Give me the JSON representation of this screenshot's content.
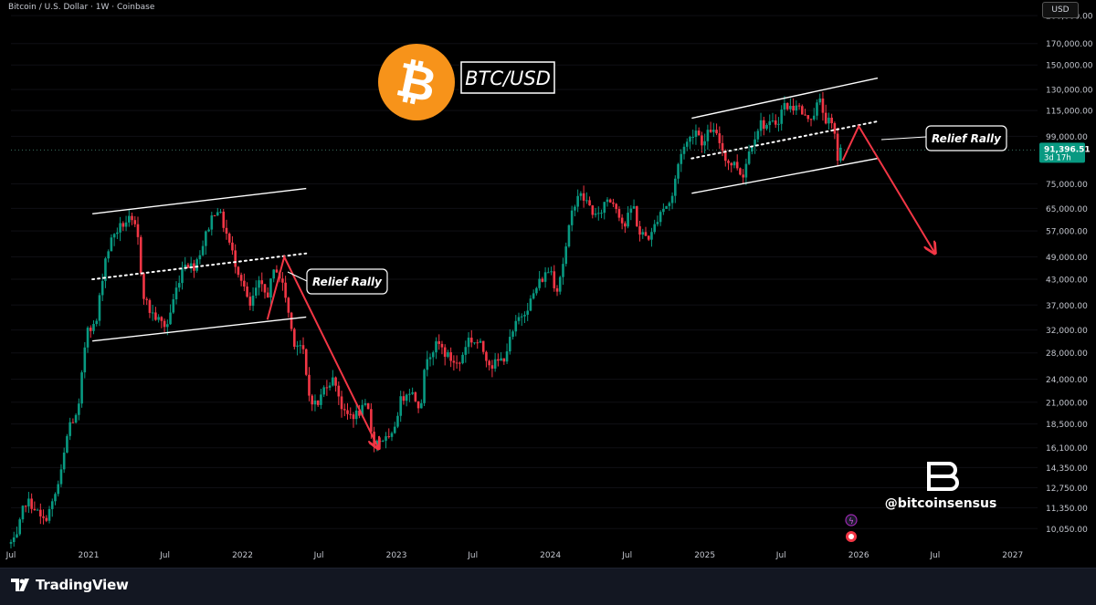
{
  "header": {
    "title": "Bitcoin / U.S. Dollar · 1W · Coinbase",
    "currency": "USD"
  },
  "chart_data": {
    "type": "candlestick",
    "title": "BTC/USD",
    "y_scale": "log",
    "ylim": [
      9000,
      210000
    ],
    "x_start": "2020-07-01",
    "x_end": "2027-03-01",
    "y_ticks": [
      {
        "v": 200000,
        "label": "200,000.00"
      },
      {
        "v": 170000,
        "label": "170,000.00"
      },
      {
        "v": 150000,
        "label": "150,000.00"
      },
      {
        "v": 130000,
        "label": "130,000.00"
      },
      {
        "v": 115000,
        "label": "115,000.00"
      },
      {
        "v": 99000,
        "label": "99,000.00"
      },
      {
        "v": 75000,
        "label": "75,000.00"
      },
      {
        "v": 65000,
        "label": "65,000.00"
      },
      {
        "v": 57000,
        "label": "57,000.00"
      },
      {
        "v": 49000,
        "label": "49,000.00"
      },
      {
        "v": 43000,
        "label": "43,000.00"
      },
      {
        "v": 37000,
        "label": "37,000.00"
      },
      {
        "v": 32000,
        "label": "32,000.00"
      },
      {
        "v": 28000,
        "label": "28,000.00"
      },
      {
        "v": 24000,
        "label": "24,000.00"
      },
      {
        "v": 21000,
        "label": "21,000.00"
      },
      {
        "v": 18500,
        "label": "18,500.00"
      },
      {
        "v": 16100,
        "label": "16,100.00"
      },
      {
        "v": 14350,
        "label": "14,350.00"
      },
      {
        "v": 12750,
        "label": "12,750.00"
      },
      {
        "v": 11350,
        "label": "11,350.00"
      },
      {
        "v": 10050,
        "label": "10,050.00"
      }
    ],
    "x_ticks": [
      {
        "t": "2020-07-01",
        "label": "Jul"
      },
      {
        "t": "2021-01-01",
        "label": "2021"
      },
      {
        "t": "2021-07-01",
        "label": "Jul"
      },
      {
        "t": "2022-01-01",
        "label": "2022"
      },
      {
        "t": "2022-07-01",
        "label": "Jul"
      },
      {
        "t": "2023-01-01",
        "label": "2023"
      },
      {
        "t": "2023-07-01",
        "label": "Jul"
      },
      {
        "t": "2024-01-01",
        "label": "2024"
      },
      {
        "t": "2024-07-01",
        "label": "Jul"
      },
      {
        "t": "2025-01-01",
        "label": "2025"
      },
      {
        "t": "2025-07-01",
        "label": "Jul"
      },
      {
        "t": "2026-01-01",
        "label": "2026"
      },
      {
        "t": "2026-07-01",
        "label": "Jul"
      },
      {
        "t": "2027-01-01",
        "label": "2027"
      }
    ],
    "price_path": [
      [
        "2020-07-01",
        9200
      ],
      [
        "2020-07-20",
        9300
      ],
      [
        "2020-08-10",
        11800
      ],
      [
        "2020-08-31",
        11500
      ],
      [
        "2020-09-21",
        10400
      ],
      [
        "2020-10-12",
        11400
      ],
      [
        "2020-11-02",
        13500
      ],
      [
        "2020-11-23",
        18500
      ],
      [
        "2020-12-14",
        19400
      ],
      [
        "2021-01-04",
        33000
      ],
      [
        "2021-01-25",
        32500
      ],
      [
        "2021-02-15",
        48000
      ],
      [
        "2021-03-08",
        56000
      ],
      [
        "2021-03-29",
        59000
      ],
      [
        "2021-04-12",
        61000
      ],
      [
        "2021-05-03",
        57000
      ],
      [
        "2021-05-17",
        40000
      ],
      [
        "2021-05-31",
        36000
      ],
      [
        "2021-06-21",
        34000
      ],
      [
        "2021-07-12",
        32500
      ],
      [
        "2021-08-02",
        40000
      ],
      [
        "2021-08-23",
        48000
      ],
      [
        "2021-09-13",
        46000
      ],
      [
        "2021-10-04",
        52000
      ],
      [
        "2021-10-25",
        61000
      ],
      [
        "2021-11-08",
        66000
      ],
      [
        "2021-11-29",
        57000
      ],
      [
        "2021-12-20",
        48000
      ],
      [
        "2022-01-10",
        42000
      ],
      [
        "2022-01-24",
        36000
      ],
      [
        "2022-02-14",
        42000
      ],
      [
        "2022-03-07",
        39000
      ],
      [
        "2022-03-28",
        46500
      ],
      [
        "2022-04-18",
        40000
      ],
      [
        "2022-05-09",
        30000
      ],
      [
        "2022-05-30",
        29000
      ],
      [
        "2022-06-13",
        22000
      ],
      [
        "2022-07-04",
        20500
      ],
      [
        "2022-07-25",
        23500
      ],
      [
        "2022-08-15",
        24000
      ],
      [
        "2022-09-05",
        19500
      ],
      [
        "2022-10-03",
        19500
      ],
      [
        "2022-10-31",
        20500
      ],
      [
        "2022-11-14",
        16500
      ],
      [
        "2022-12-05",
        17000
      ],
      [
        "2022-12-26",
        16700
      ],
      [
        "2023-01-16",
        21000
      ],
      [
        "2023-02-06",
        22800
      ],
      [
        "2023-03-06",
        20500
      ],
      [
        "2023-03-20",
        27500
      ],
      [
        "2023-04-17",
        29500
      ],
      [
        "2023-05-08",
        27500
      ],
      [
        "2023-06-05",
        26000
      ],
      [
        "2023-06-26",
        30500
      ],
      [
        "2023-07-24",
        29500
      ],
      [
        "2023-08-21",
        26000
      ],
      [
        "2023-09-18",
        27000
      ],
      [
        "2023-10-23",
        34000
      ],
      [
        "2023-11-20",
        37500
      ],
      [
        "2023-12-11",
        42000
      ],
      [
        "2024-01-08",
        46000
      ],
      [
        "2024-01-22",
        40000
      ],
      [
        "2024-02-12",
        50000
      ],
      [
        "2024-02-26",
        62000
      ],
      [
        "2024-03-11",
        71000
      ],
      [
        "2024-04-01",
        68000
      ],
      [
        "2024-04-29",
        61000
      ],
      [
        "2024-05-20",
        69000
      ],
      [
        "2024-06-10",
        67000
      ],
      [
        "2024-07-01",
        58000
      ],
      [
        "2024-07-22",
        67000
      ],
      [
        "2024-08-05",
        56000
      ],
      [
        "2024-09-02",
        55000
      ],
      [
        "2024-09-23",
        64000
      ],
      [
        "2024-10-21",
        68000
      ],
      [
        "2024-11-11",
        90000
      ],
      [
        "2024-12-02",
        97000
      ],
      [
        "2024-12-16",
        104000
      ],
      [
        "2025-01-06",
        94000
      ],
      [
        "2025-01-20",
        104000
      ],
      [
        "2025-02-10",
        97000
      ],
      [
        "2025-03-03",
        85000
      ],
      [
        "2025-03-24",
        84000
      ],
      [
        "2025-04-07",
        78000
      ],
      [
        "2025-04-28",
        95000
      ],
      [
        "2025-05-19",
        107000
      ],
      [
        "2025-06-09",
        105000
      ],
      [
        "2025-06-30",
        108000
      ],
      [
        "2025-07-14",
        119000
      ],
      [
        "2025-08-04",
        116000
      ],
      [
        "2025-08-11",
        122000
      ],
      [
        "2025-09-01",
        110000
      ],
      [
        "2025-09-22",
        112000
      ],
      [
        "2025-10-06",
        123000
      ],
      [
        "2025-10-20",
        110000
      ],
      [
        "2025-11-10",
        104000
      ],
      [
        "2025-11-17",
        86000
      ],
      [
        "2025-11-24",
        91396
      ]
    ],
    "last_price": {
      "value": 91396.51,
      "label": "91,396.51",
      "countdown": "3d 17h"
    },
    "annotations": {
      "relief_rally_label": "Relief Rally",
      "brand_title": "BTC/USD",
      "handle": "@bitcoinsensus"
    },
    "drawings": [
      {
        "kind": "trendline",
        "style": "solid",
        "color": "#ffffff",
        "p1": [
          "2021-01-10",
          63000
        ],
        "p2": [
          "2022-06-01",
          73000
        ]
      },
      {
        "kind": "trendline",
        "style": "solid",
        "color": "#ffffff",
        "p1": [
          "2021-01-10",
          30000
        ],
        "p2": [
          "2022-06-01",
          34500
        ]
      },
      {
        "kind": "trendline",
        "style": "dotted",
        "color": "#ffffff",
        "p1": [
          "2021-01-10",
          43000
        ],
        "p2": [
          "2022-06-01",
          50000
        ]
      },
      {
        "kind": "trendline",
        "style": "solid",
        "color": "#ffffff",
        "p1": [
          "2024-12-01",
          110000
        ],
        "p2": [
          "2026-02-15",
          139000
        ]
      },
      {
        "kind": "trendline",
        "style": "solid",
        "color": "#ffffff",
        "p1": [
          "2024-12-01",
          71000
        ],
        "p2": [
          "2026-02-15",
          87000
        ]
      },
      {
        "kind": "trendline",
        "style": "dotted",
        "color": "#ffffff",
        "p1": [
          "2024-12-01",
          87000
        ],
        "p2": [
          "2026-02-15",
          108000
        ]
      },
      {
        "kind": "arrow_path",
        "color": "#f23645",
        "points": [
          [
            "2022-03-01",
            34000
          ],
          [
            "2022-04-10",
            49000
          ],
          [
            "2022-11-20",
            16000
          ]
        ]
      },
      {
        "kind": "arrow_path",
        "color": "#f23645",
        "points": [
          [
            "2025-11-24",
            86000
          ],
          [
            "2026-01-01",
            105000
          ],
          [
            "2026-07-01",
            50000
          ]
        ]
      }
    ]
  },
  "colors": {
    "up": "#089981",
    "down": "#f23645",
    "bitcoin_orange": "#f7931a",
    "background": "#000000",
    "price_label_bg": "#089981"
  },
  "footer": {
    "brand": "TradingView"
  }
}
